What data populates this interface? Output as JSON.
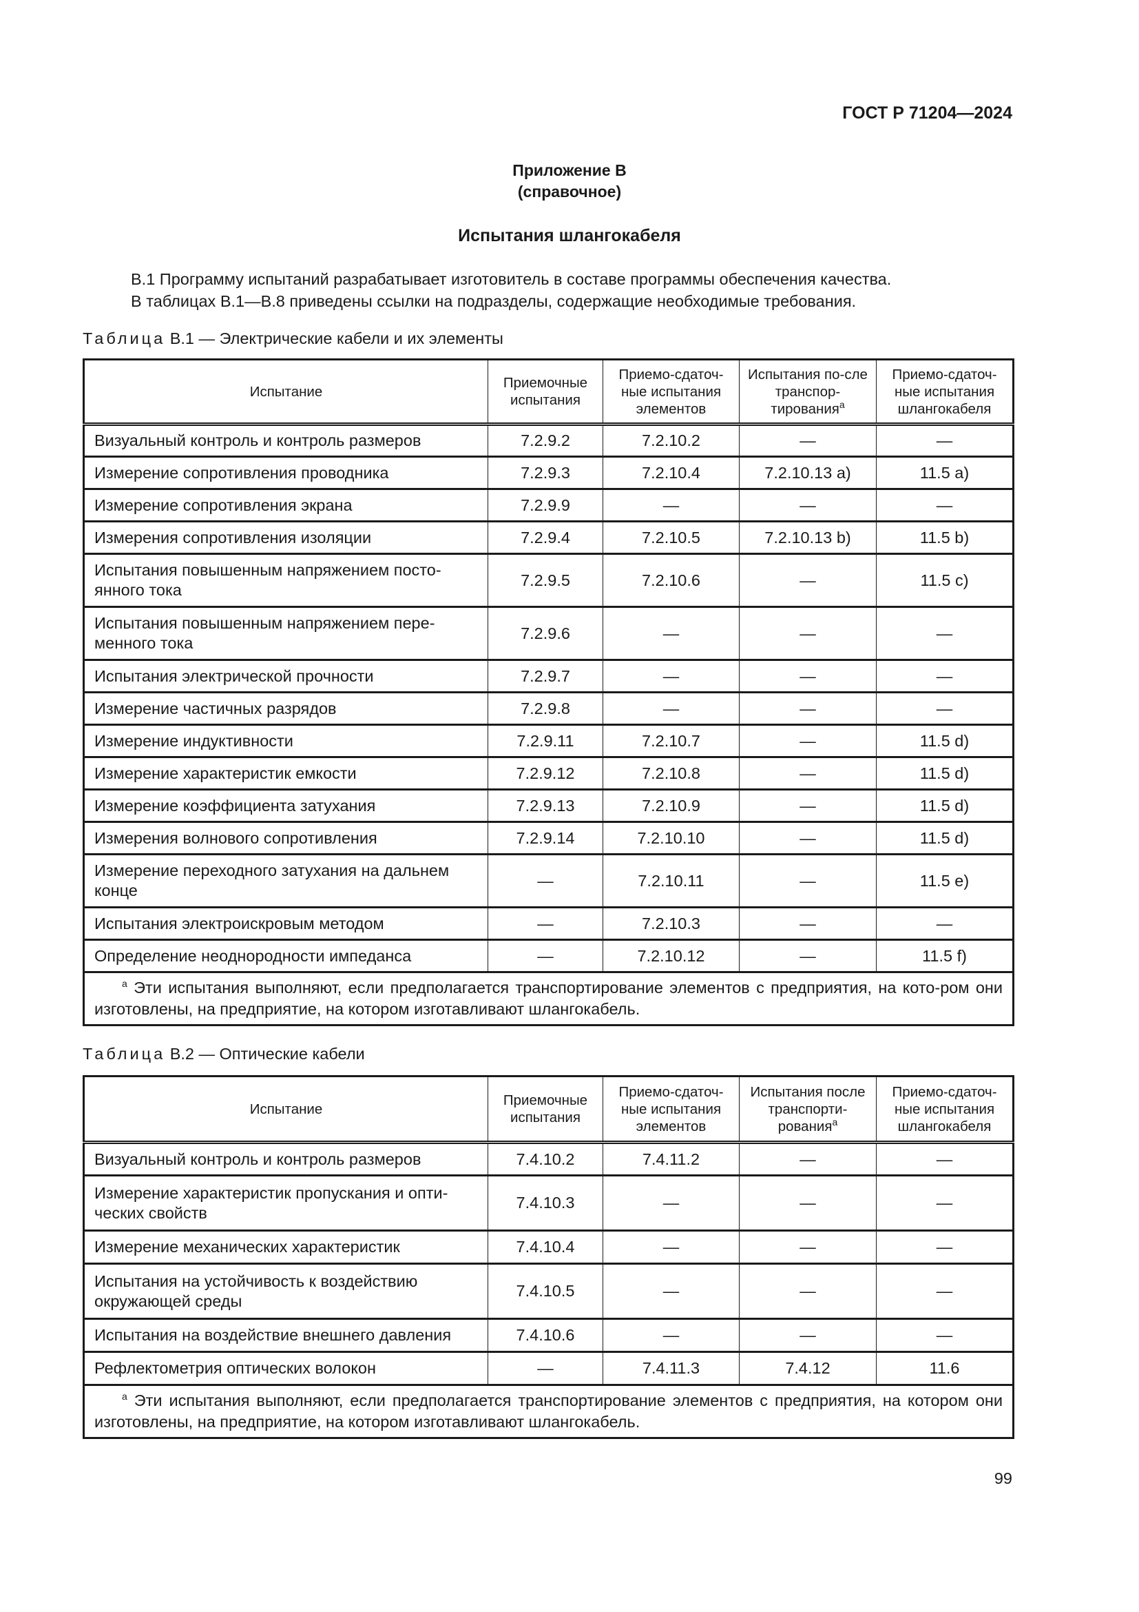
{
  "header": {
    "doc_code": "ГОСТ Р 71204—2024"
  },
  "appendix": {
    "label": "Приложение В",
    "kind": "(справочное)",
    "title": "Испытания шлангокабеля"
  },
  "intro": [
    "В.1 Программу испытаний разрабатывает изготовитель в составе программы обеспечения качества.",
    "В таблицах В.1—В.8 приведены ссылки на подразделы, содержащие необходимые требования."
  ],
  "tables": [
    {
      "caption_word": "Таблица",
      "caption_rest": "В.1 — Электрические кабели и их элементы",
      "headers": [
        "Испытание",
        "Приемочные испытания",
        "Приемо-сдаточ-ные испытания элементов",
        "Испытания по-сле транспор-тирования",
        "Приемо-сдаточ-ные испытания шлангокабеля"
      ],
      "header_sup_col": 3,
      "rows": [
        {
          "h": 47,
          "cells": [
            "Визуальный контроль и контроль размеров",
            "7.2.9.2",
            "7.2.10.2",
            "—",
            "—"
          ]
        },
        {
          "h": 47,
          "cells": [
            "Измерение сопротивления проводника",
            "7.2.9.3",
            "7.2.10.4",
            "7.2.10.13 a)",
            "11.5 a)"
          ]
        },
        {
          "h": 47,
          "cells": [
            "Измерение сопротивления экрана",
            "7.2.9.9",
            "—",
            "—",
            "—"
          ]
        },
        {
          "h": 47,
          "cells": [
            "Измерения сопротивления изоляции",
            "7.2.9.4",
            "7.2.10.5",
            "7.2.10.13 b)",
            "11.5 b)"
          ]
        },
        {
          "h": 77,
          "cells": [
            "Испытания повышенным напряжением посто-янного тока",
            "7.2.9.5",
            "7.2.10.6",
            "—",
            "11.5 c)"
          ]
        },
        {
          "h": 77,
          "cells": [
            "Испытания повышенным напряжением пере-менного тока",
            "7.2.9.6",
            "—",
            "—",
            "—"
          ]
        },
        {
          "h": 47,
          "cells": [
            "Испытания электрической прочности",
            "7.2.9.7",
            "—",
            "—",
            "—"
          ]
        },
        {
          "h": 47,
          "cells": [
            "Измерение частичных разрядов",
            "7.2.9.8",
            "—",
            "—",
            "—"
          ]
        },
        {
          "h": 47,
          "cells": [
            "Измерение индуктивности",
            "7.2.9.11",
            "7.2.10.7",
            "—",
            "11.5 d)"
          ]
        },
        {
          "h": 47,
          "cells": [
            "Измерение характеристик емкости",
            "7.2.9.12",
            "7.2.10.8",
            "—",
            "11.5 d)"
          ]
        },
        {
          "h": 47,
          "cells": [
            "Измерение коэффициента затухания",
            "7.2.9.13",
            "7.2.10.9",
            "—",
            "11.5 d)"
          ]
        },
        {
          "h": 47,
          "cells": [
            "Измерения волнового сопротивления",
            "7.2.9.14",
            "7.2.10.10",
            "—",
            "11.5 d)"
          ]
        },
        {
          "h": 77,
          "cells": [
            "Измерение переходного затухания на дальнем конце",
            "—",
            "7.2.10.11",
            "—",
            "11.5 e)"
          ]
        },
        {
          "h": 47,
          "cells": [
            "Испытания электроискровым методом",
            "—",
            "7.2.10.3",
            "—",
            "—"
          ]
        },
        {
          "h": 47,
          "cells": [
            "Определение неоднородности импеданса",
            "—",
            "7.2.10.12",
            "—",
            "11.5 f)"
          ]
        }
      ],
      "footnote_mark": "a",
      "footnote": "Эти испытания выполняют, если предполагается транспортирование элементов с предприятия, на кото-ром они изготовлены, на предприятие, на котором изготавливают шлангокабель."
    },
    {
      "caption_word": "Таблица",
      "caption_rest": "В.2 — Оптические кабели",
      "headers": [
        "Испытание",
        "Приемочные испытания",
        "Приемо-сдаточ-ные испытания элементов",
        "Испытания после транспорти-рования",
        "Приемо-сдаточ-ные испытания шлангокабеля"
      ],
      "header_sup_col": 3,
      "rows": [
        {
          "h": 48,
          "cells": [
            "Визуальный контроль и контроль размеров",
            "7.4.10.2",
            "7.4.11.2",
            "—",
            "—"
          ]
        },
        {
          "h": 80,
          "cells": [
            "Измерение характеристик пропускания и опти-ческих свойств",
            "7.4.10.3",
            "—",
            "—",
            "—"
          ]
        },
        {
          "h": 48,
          "cells": [
            "Измерение механических характеристик",
            "7.4.10.4",
            "—",
            "—",
            "—"
          ]
        },
        {
          "h": 80,
          "cells": [
            "Испытания на устойчивость к воздействию окружающей среды",
            "7.4.10.5",
            "—",
            "—",
            "—"
          ]
        },
        {
          "h": 48,
          "cells": [
            "Испытания на воздействие внешнего давления",
            "7.4.10.6",
            "—",
            "—",
            "—"
          ]
        },
        {
          "h": 48,
          "cells": [
            "Рефлектометрия оптических волокон",
            "—",
            "7.4.11.3",
            "7.4.12",
            "11.6"
          ]
        }
      ],
      "footnote_mark": "a",
      "footnote": "Эти испытания выполняют, если предполагается транспортирование элементов с предприятия, на котором они изготовлены, на предприятие, на котором изготавливают шлангокабель."
    }
  ],
  "page_number": "99"
}
